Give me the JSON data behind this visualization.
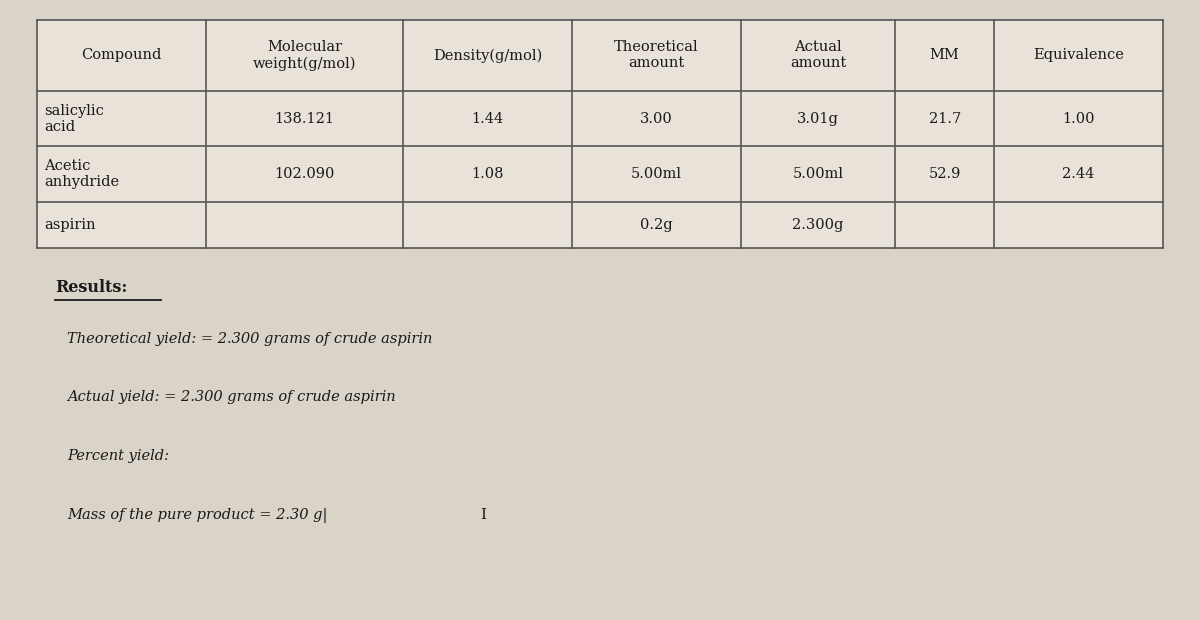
{
  "bg_color": "#d9d3c8",
  "table_bg": "#e8e2d8",
  "text_color": "#1a1a1a",
  "border_color": "#555555",
  "col_headers": [
    "Compound",
    "Molecular\nweight(g/mol)",
    "Density(g/mol)",
    "Theoretical\namount",
    "Actual\namount",
    "MM",
    "Equivalence"
  ],
  "rows": [
    [
      "salicylic\nacid",
      "138.121",
      "1.44",
      "3.00",
      "3.01g",
      "21.7",
      "1.00"
    ],
    [
      "Acetic\nanhydride",
      "102.090",
      "1.08",
      "5.00ml",
      "5.00ml",
      "52.9",
      "2.44"
    ],
    [
      "aspirin",
      "",
      "",
      "0.2g",
      "2.300g",
      "",
      ""
    ]
  ],
  "results_label": "Results:",
  "theoretical_yield": "Theoretical yield: = 2.300 grams of crude aspirin",
  "actual_yield": "Actual yield: = 2.300 grams of crude aspirin",
  "percent_yield": "Percent yield:",
  "mass_line": "Mass of the pure product = 2.30 g|",
  "cursor_symbol": "I"
}
